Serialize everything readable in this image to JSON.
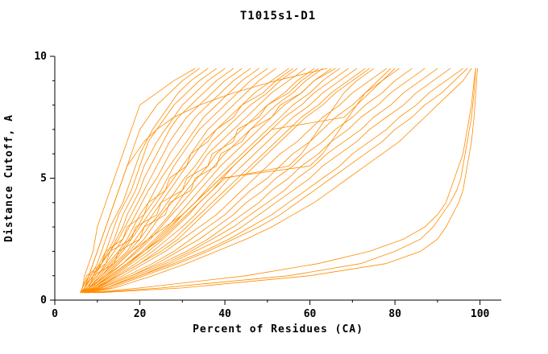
{
  "chart_data": {
    "type": "line",
    "title": "T1015s1-D1",
    "xlabel": "Percent of Residues (CA)",
    "ylabel": "Distance Cutoff, A",
    "color": "#ff8c00",
    "axis_color": "#000000",
    "xlim": [
      0,
      105
    ],
    "ylim": [
      0,
      10
    ],
    "xticks_major": [
      0,
      20,
      40,
      60,
      80,
      100
    ],
    "xticks_minor": [
      10,
      30,
      50,
      70,
      90
    ],
    "yticks_major": [
      0,
      5,
      10
    ],
    "yticks_minor": [
      1,
      2,
      3,
      4,
      6,
      7,
      8,
      9
    ],
    "legend": "none",
    "grid": false,
    "cutoff_levels": [
      0.3,
      0.5,
      1,
      1.5,
      2,
      2.5,
      3,
      3.5,
      4,
      4.5,
      5,
      5.5,
      6,
      6.5,
      7,
      7.5,
      8,
      8.5,
      9,
      9.5
    ],
    "series": [
      {
        "xs": [
          6,
          6.5,
          8,
          9,
          10,
          11,
          12,
          13,
          14,
          15,
          16,
          17,
          18,
          19,
          20,
          22,
          24,
          27,
          30,
          34
        ]
      },
      {
        "xs": [
          6,
          7,
          8.5,
          10,
          11,
          12,
          13,
          14.5,
          16,
          17,
          18,
          19,
          20,
          21.5,
          23,
          25,
          27,
          29,
          32,
          36
        ]
      },
      {
        "xs": [
          6.5,
          7,
          9,
          10.5,
          12,
          13,
          14,
          15,
          16.5,
          18,
          19,
          20,
          21,
          22,
          24,
          26,
          28,
          31,
          34,
          38
        ]
      },
      {
        "xs": [
          6,
          7,
          9,
          11,
          12.5,
          14,
          15,
          16,
          17.5,
          19,
          20,
          21,
          22.5,
          24,
          26,
          28,
          30,
          33,
          36,
          40
        ]
      },
      {
        "xs": [
          6.5,
          7.5,
          9.5,
          11,
          13,
          14.5,
          16,
          17,
          18.5,
          20,
          21,
          22.5,
          24,
          25.5,
          27,
          29,
          32,
          35,
          38,
          42
        ]
      },
      {
        "xs": [
          6,
          7,
          9,
          11,
          13,
          15,
          16.5,
          18,
          19.5,
          21,
          22.5,
          24,
          25.5,
          27,
          29,
          31,
          34,
          37,
          40,
          44
        ]
      },
      {
        "xs": [
          6.5,
          7.5,
          10,
          12,
          14,
          16,
          17.5,
          19,
          20.5,
          22,
          24,
          25.5,
          27,
          29,
          31,
          33,
          36,
          39,
          42,
          46
        ]
      },
      {
        "xs": [
          6,
          7.5,
          10,
          12.5,
          15,
          17,
          18.5,
          20,
          22,
          23.5,
          25,
          27,
          29,
          31,
          33,
          35,
          38,
          41,
          44,
          48
        ]
      },
      {
        "xs": [
          6.5,
          8,
          10.5,
          13,
          15.5,
          17.5,
          19.5,
          21,
          23,
          25,
          26.5,
          28,
          30,
          32,
          34,
          37,
          40,
          43,
          46,
          50
        ]
      },
      {
        "xs": [
          6,
          8,
          11,
          13.5,
          16,
          18,
          20,
          22,
          24,
          26,
          28,
          30,
          32,
          34,
          36,
          39,
          42,
          45,
          48,
          52
        ]
      },
      {
        "xs": [
          6.5,
          8,
          11,
          14,
          17,
          19,
          21,
          23,
          25,
          27,
          29,
          31,
          33,
          35,
          38,
          41,
          44,
          47,
          51,
          55
        ]
      },
      {
        "xs": [
          7,
          8.5,
          11.5,
          14.5,
          17.5,
          20,
          22,
          24.5,
          26.5,
          28.5,
          30.5,
          33,
          35,
          37,
          40,
          43,
          46,
          50,
          53,
          57
        ]
      },
      {
        "xs": [
          6.5,
          8,
          12,
          15,
          18,
          21,
          23,
          25,
          27.5,
          30,
          32,
          34,
          36,
          39,
          42,
          45,
          48,
          51,
          55,
          59
        ]
      },
      {
        "xs": [
          7,
          9,
          12.5,
          16,
          19,
          22,
          24.5,
          27,
          29,
          31,
          33.5,
          36,
          38,
          41,
          44,
          47,
          50,
          54,
          57,
          61
        ]
      },
      {
        "xs": [
          6.5,
          8.5,
          12,
          16,
          19.5,
          22.5,
          25,
          27.5,
          30,
          32.5,
          35,
          37.5,
          40,
          43,
          46,
          49,
          52,
          56,
          59,
          63
        ]
      },
      {
        "xs": [
          7,
          9,
          13,
          17,
          20.5,
          23.5,
          26.5,
          29,
          31.5,
          34,
          36.5,
          39,
          42,
          45,
          48,
          51,
          54,
          58,
          61,
          65
        ]
      },
      {
        "xs": [
          6.5,
          9,
          13.5,
          17.5,
          21,
          24.5,
          27.5,
          30,
          33,
          35.5,
          38,
          41,
          44,
          47,
          50,
          53,
          56,
          60,
          63,
          67
        ]
      },
      {
        "xs": [
          7,
          9.5,
          14,
          18,
          22,
          25.5,
          28.5,
          31.5,
          34,
          37,
          39.5,
          42,
          45,
          48,
          51,
          54,
          58,
          61,
          65,
          69
        ]
      },
      {
        "xs": [
          7,
          10,
          14.5,
          19,
          23,
          26.5,
          30,
          33,
          35.5,
          38.5,
          41,
          44,
          47,
          50,
          53,
          56,
          60,
          63,
          67,
          71
        ]
      },
      {
        "xs": [
          6.5,
          9.5,
          15,
          20,
          24,
          28,
          31,
          34,
          37,
          40,
          43,
          46,
          49,
          52,
          55,
          58,
          62,
          65,
          69,
          73
        ]
      },
      {
        "xs": [
          7,
          9,
          13,
          17,
          21,
          25,
          28,
          31,
          34,
          37,
          40,
          55,
          58,
          60,
          62,
          64,
          66,
          68,
          71,
          75
        ]
      },
      {
        "xs": [
          6.5,
          8.5,
          12,
          15,
          18,
          22,
          26,
          30,
          33,
          36,
          39,
          60,
          63,
          65,
          67,
          69,
          71,
          73,
          76,
          79
        ]
      },
      {
        "xs": [
          7,
          10,
          15,
          20,
          25,
          29,
          32,
          35,
          38,
          41,
          44,
          47,
          50,
          53,
          56,
          59,
          63,
          66,
          70,
          74
        ]
      },
      {
        "xs": [
          7,
          10,
          16,
          21,
          26,
          30,
          34,
          38,
          41,
          44,
          47,
          50,
          53,
          57,
          60,
          63,
          67,
          70,
          74,
          78
        ]
      },
      {
        "xs": [
          7,
          10.5,
          17,
          23,
          28,
          32,
          36,
          40,
          43,
          46,
          50,
          53,
          56,
          60,
          63,
          66,
          70,
          73,
          77,
          81
        ]
      },
      {
        "xs": [
          7.5,
          11,
          18,
          24,
          29,
          34,
          38,
          42,
          45,
          49,
          52,
          56,
          59,
          63,
          66,
          70,
          73,
          77,
          80,
          84
        ]
      },
      {
        "xs": [
          7,
          11,
          18,
          25,
          31,
          36,
          40,
          44,
          48,
          51,
          55,
          58,
          62,
          65,
          69,
          72,
          76,
          79,
          83,
          87
        ]
      },
      {
        "xs": [
          7.5,
          12,
          19,
          26,
          32,
          37,
          42,
          46,
          50,
          54,
          57,
          61,
          64,
          68,
          72,
          75,
          79,
          82,
          86,
          90
        ]
      },
      {
        "xs": [
          7,
          12,
          20,
          27,
          33,
          39,
          44,
          48,
          52,
          56,
          60,
          63,
          67,
          71,
          74,
          78,
          82,
          85,
          89,
          93
        ]
      },
      {
        "xs": [
          7.5,
          12,
          20,
          28,
          35,
          41,
          46,
          51,
          55,
          59,
          63,
          67,
          70,
          74,
          78,
          81,
          85,
          88,
          92,
          96
        ]
      },
      {
        "xs": [
          8,
          13,
          21,
          29,
          36,
          42,
          48,
          53,
          57,
          61,
          65,
          69,
          73,
          77,
          80,
          84,
          87,
          91,
          94,
          97
        ]
      },
      {
        "xs": [
          8,
          14,
          23,
          31,
          38,
          45,
          51,
          56,
          61,
          65,
          69,
          73,
          77,
          81,
          84,
          87,
          90,
          93,
          96,
          98
        ]
      },
      {
        "xs": [
          8,
          20,
          45,
          62,
          74,
          82,
          87,
          90,
          92,
          93,
          94,
          95,
          96,
          96.5,
          97,
          97.5,
          98,
          98.3,
          98.6,
          99
        ]
      },
      {
        "xs": [
          9,
          25,
          55,
          72,
          80,
          86,
          89,
          91,
          93,
          94.5,
          95.5,
          96,
          96.5,
          97,
          97.5,
          98,
          98.3,
          98.6,
          98.8,
          99
        ]
      },
      {
        "xs": [
          10,
          30,
          60,
          78,
          86,
          90,
          92,
          93.5,
          95,
          96,
          96.5,
          97,
          97.5,
          98,
          98.3,
          98.6,
          98.8,
          99,
          99.2,
          99.4
        ]
      },
      {
        "xs": [
          6.5,
          7,
          8,
          12,
          13,
          18,
          19,
          24,
          25,
          30,
          31,
          36,
          37,
          42,
          43,
          48,
          50,
          55,
          58,
          62
        ]
      },
      {
        "xs": [
          7,
          8,
          9,
          14,
          15,
          20,
          21,
          26,
          27,
          32,
          33,
          38,
          39,
          44,
          46,
          51,
          53,
          58,
          61,
          66
        ]
      },
      {
        "xs": [
          6,
          6.5,
          7.5,
          11,
          12,
          16,
          17,
          21,
          22,
          26,
          27,
          31,
          32,
          36,
          38,
          42,
          44,
          49,
          52,
          56
        ]
      },
      {
        "xs": [
          7,
          9,
          13,
          17,
          21,
          24,
          27,
          30,
          33,
          36,
          39,
          42,
          45,
          48,
          51,
          68,
          71,
          74,
          77,
          80
        ]
      },
      {
        "xs": [
          6,
          7,
          8,
          9,
          10,
          11,
          12,
          13,
          14,
          15,
          16,
          17,
          19,
          21,
          24,
          28,
          34,
          42,
          52,
          64
        ]
      },
      {
        "xs": [
          6,
          6.5,
          7,
          8,
          9,
          9.5,
          10,
          11,
          12,
          13,
          14,
          15,
          16,
          17,
          18,
          19,
          20,
          24,
          28,
          33
        ]
      }
    ]
  }
}
